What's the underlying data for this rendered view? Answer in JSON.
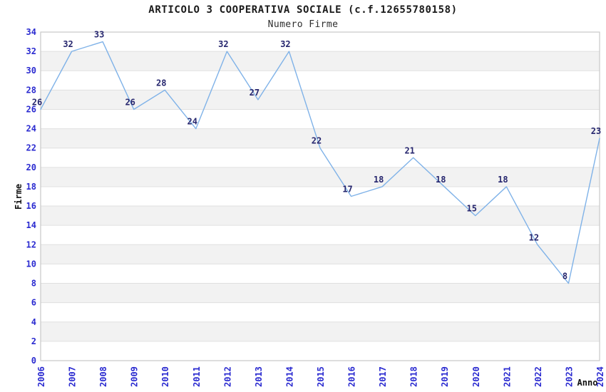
{
  "chart_data": {
    "type": "line",
    "title": "ARTICOLO 3 COOPERATIVA SOCIALE (c.f.12655780158)",
    "subtitle": "Numero Firme",
    "xlabel": "Anno",
    "ylabel": "Firme",
    "x": [
      "2006",
      "2007",
      "2008",
      "2009",
      "2010",
      "2011",
      "2012",
      "2013",
      "2014",
      "2015",
      "2016",
      "2017",
      "2018",
      "2019",
      "2020",
      "2021",
      "2022",
      "2023",
      "2024"
    ],
    "values": [
      26,
      32,
      33,
      26,
      28,
      24,
      32,
      27,
      32,
      22,
      17,
      18,
      21,
      18,
      15,
      18,
      12,
      8,
      23
    ],
    "ylim": [
      0,
      34
    ],
    "ytick_step": 2,
    "grid": true,
    "legend": "none",
    "point_labels_shown": true,
    "colors": {
      "line": "#7fb2e8",
      "point_label": "#26266e",
      "tick_label": "#2a2ad0",
      "gridline": "#e0e0e0",
      "band_gray": "#f2f2f2",
      "band_white": "#ffffff",
      "plot_border": "#c9c9c9",
      "title": "#1a1a1a",
      "subtitle": "#2e2e2e",
      "axis_title": "#111111"
    }
  }
}
